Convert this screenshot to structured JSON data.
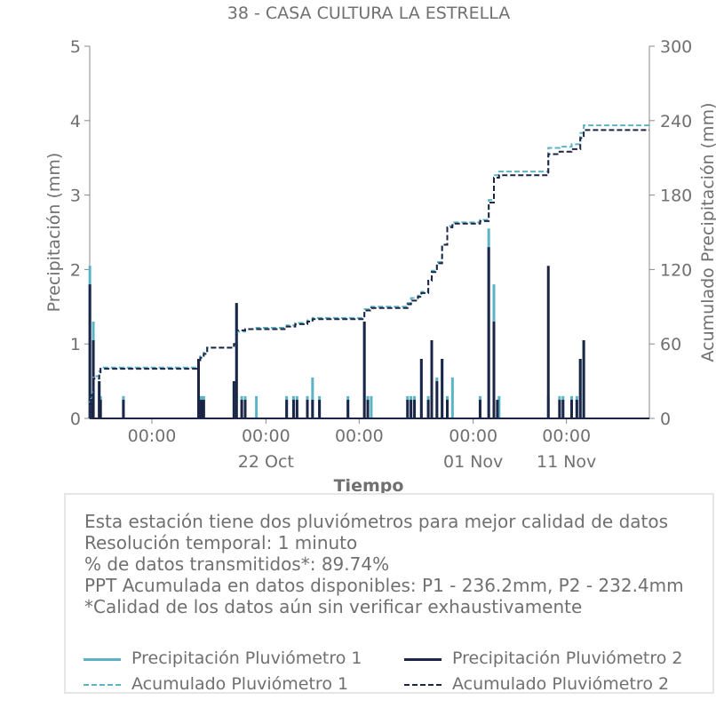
{
  "chart_data": {
    "type": "line",
    "title": "38 - CASA CULTURA LA ESTRELLA",
    "xlabel": "Tiempo",
    "ylabel": "Precipitación (mm)",
    "ylabel_right": "Acumulado Precipitación (mm)",
    "ylim": [
      0,
      5
    ],
    "ylim_right": [
      0,
      300
    ],
    "yticks": [
      "0",
      "1",
      "2",
      "3",
      "4",
      "5"
    ],
    "yticks_right": [
      "0",
      "60",
      "120",
      "180",
      "240",
      "300"
    ],
    "xlim": [
      "2023-10-15T00:00",
      "2023-11-11T00:00"
    ],
    "xticks": [
      {
        "x": "2023-10-18T00:00",
        "label": "00:00",
        "sublabel": ""
      },
      {
        "x": "2023-10-23T12:00",
        "label": "00:00",
        "sublabel": "22 Oct"
      },
      {
        "x": "2023-10-28T00:00",
        "label": "00:00",
        "sublabel": ""
      },
      {
        "x": "2023-11-02T12:00",
        "label": "00:00",
        "sublabel": "01 Nov"
      },
      {
        "x": "2023-11-07T00:00",
        "label": "00:00",
        "sublabel": "11 Nov"
      }
    ],
    "grid": false,
    "colors": {
      "p1": "#5ab4c4",
      "p2": "#1d2547"
    },
    "series": [
      {
        "name": "Precipitación Pluviómetro 1",
        "axis": "left",
        "style": "bar-spike",
        "color": "#5ab4c4",
        "points": [
          [
            "2023-10-15T00:10",
            2.05
          ],
          [
            "2023-10-15T00:40",
            0.3
          ],
          [
            "2023-10-15T01:20",
            0.3
          ],
          [
            "2023-10-15T02:20",
            0.3
          ],
          [
            "2023-10-15T03:00",
            0.3
          ],
          [
            "2023-10-15T04:10",
            1.3
          ],
          [
            "2023-10-15T11:00",
            0.5
          ],
          [
            "2023-10-15T12:30",
            0.3
          ],
          [
            "2023-10-16T15:00",
            0.3
          ],
          [
            "2023-10-20T06:00",
            0.8
          ],
          [
            "2023-10-20T08:00",
            0.3
          ],
          [
            "2023-10-20T10:00",
            0.3
          ],
          [
            "2023-10-20T12:00",
            0.3
          ],
          [
            "2023-10-21T23:00",
            0.5
          ],
          [
            "2023-10-22T02:00",
            1.55
          ],
          [
            "2023-10-22T08:00",
            0.3
          ],
          [
            "2023-10-22T12:00",
            0.3
          ],
          [
            "2023-10-23T01:00",
            0.3
          ],
          [
            "2023-10-24T12:00",
            0.3
          ],
          [
            "2023-10-24T20:00",
            0.3
          ],
          [
            "2023-10-25T00:00",
            0.3
          ],
          [
            "2023-10-25T12:00",
            0.3
          ],
          [
            "2023-10-25T18:00",
            0.55
          ],
          [
            "2023-10-26T02:00",
            0.3
          ],
          [
            "2023-10-27T11:00",
            0.3
          ],
          [
            "2023-10-28T06:00",
            1.3
          ],
          [
            "2023-10-28T10:00",
            0.3
          ],
          [
            "2023-10-28T14:00",
            0.3
          ],
          [
            "2023-10-30T08:00",
            0.3
          ],
          [
            "2023-10-30T12:00",
            0.3
          ],
          [
            "2023-10-30T16:00",
            0.3
          ],
          [
            "2023-10-31T00:00",
            0.8
          ],
          [
            "2023-10-31T08:00",
            0.3
          ],
          [
            "2023-10-31T12:00",
            1.05
          ],
          [
            "2023-10-31T18:00",
            0.55
          ],
          [
            "2023-11-01T00:00",
            0.8
          ],
          [
            "2023-11-01T06:00",
            0.3
          ],
          [
            "2023-11-01T12:00",
            0.55
          ],
          [
            "2023-11-02T20:00",
            0.3
          ],
          [
            "2023-11-03T06:00",
            2.55
          ],
          [
            "2023-11-03T12:00",
            1.8
          ],
          [
            "2023-11-03T18:00",
            0.3
          ],
          [
            "2023-11-06T03:00",
            0.3
          ],
          [
            "2023-11-06T16:00",
            0.3
          ],
          [
            "2023-11-06T20:00",
            0.3
          ],
          [
            "2023-11-07T06:00",
            0.3
          ],
          [
            "2023-11-07T12:00",
            0.3
          ],
          [
            "2023-11-07T16:00",
            0.8
          ],
          [
            "2023-11-07T20:00",
            1.05
          ]
        ]
      },
      {
        "name": "Precipitación Pluviómetro 2",
        "axis": "left",
        "style": "bar-spike",
        "color": "#1d2547",
        "points": [
          [
            "2023-10-15T00:10",
            1.8
          ],
          [
            "2023-10-15T00:40",
            0.25
          ],
          [
            "2023-10-15T01:20",
            0.25
          ],
          [
            "2023-10-15T02:20",
            0.25
          ],
          [
            "2023-10-15T03:00",
            0.25
          ],
          [
            "2023-10-15T04:10",
            1.05
          ],
          [
            "2023-10-15T11:00",
            0.5
          ],
          [
            "2023-10-15T12:30",
            0.25
          ],
          [
            "2023-10-16T15:00",
            0.25
          ],
          [
            "2023-10-20T06:00",
            0.8
          ],
          [
            "2023-10-20T08:00",
            0.25
          ],
          [
            "2023-10-20T10:00",
            0.25
          ],
          [
            "2023-10-20T12:00",
            0.25
          ],
          [
            "2023-10-21T23:00",
            0.5
          ],
          [
            "2023-10-22T02:00",
            1.55
          ],
          [
            "2023-10-22T08:00",
            0.25
          ],
          [
            "2023-10-22T12:00",
            0.25
          ],
          [
            "2023-10-24T12:00",
            0.25
          ],
          [
            "2023-10-24T20:00",
            0.25
          ],
          [
            "2023-10-25T00:00",
            0.25
          ],
          [
            "2023-10-25T12:00",
            0.25
          ],
          [
            "2023-10-25T18:00",
            0.25
          ],
          [
            "2023-10-26T02:00",
            0.25
          ],
          [
            "2023-10-27T11:00",
            0.25
          ],
          [
            "2023-10-28T06:00",
            1.3
          ],
          [
            "2023-10-28T10:00",
            0.25
          ],
          [
            "2023-10-30T08:00",
            0.25
          ],
          [
            "2023-10-30T12:00",
            0.25
          ],
          [
            "2023-10-30T16:00",
            0.25
          ],
          [
            "2023-10-31T00:00",
            0.8
          ],
          [
            "2023-10-31T08:00",
            0.25
          ],
          [
            "2023-10-31T12:00",
            1.05
          ],
          [
            "2023-10-31T18:00",
            0.5
          ],
          [
            "2023-11-01T00:00",
            0.8
          ],
          [
            "2023-11-01T06:00",
            0.25
          ],
          [
            "2023-11-02T20:00",
            0.25
          ],
          [
            "2023-11-03T06:00",
            2.3
          ],
          [
            "2023-11-03T12:00",
            1.3
          ],
          [
            "2023-11-03T16:00",
            0.25
          ],
          [
            "2023-11-06T03:00",
            2.05
          ],
          [
            "2023-11-06T16:00",
            0.25
          ],
          [
            "2023-11-06T20:00",
            0.25
          ],
          [
            "2023-11-07T06:00",
            0.25
          ],
          [
            "2023-11-07T12:00",
            0.25
          ],
          [
            "2023-11-07T16:00",
            0.8
          ],
          [
            "2023-11-07T20:00",
            1.05
          ]
        ]
      },
      {
        "name": "Acumulado Pluviómetro 1",
        "axis": "right",
        "style": "step-dashed",
        "color": "#5ab4c4",
        "points": [
          [
            "2023-10-15T00:00",
            0
          ],
          [
            "2023-10-15T00:10",
            13
          ],
          [
            "2023-10-15T01:20",
            17
          ],
          [
            "2023-10-15T02:30",
            21
          ],
          [
            "2023-10-15T04:10",
            34
          ],
          [
            "2023-10-15T11:00",
            38
          ],
          [
            "2023-10-15T12:30",
            41
          ],
          [
            "2023-10-20T06:00",
            46
          ],
          [
            "2023-10-20T08:00",
            50
          ],
          [
            "2023-10-20T12:00",
            53
          ],
          [
            "2023-10-20T16:00",
            57
          ],
          [
            "2023-10-21T23:00",
            60
          ],
          [
            "2023-10-22T02:00",
            70
          ],
          [
            "2023-10-22T12:00",
            72
          ],
          [
            "2023-10-23T01:00",
            73
          ],
          [
            "2023-10-24T12:00",
            75
          ],
          [
            "2023-10-24T22:00",
            77
          ],
          [
            "2023-10-25T12:00",
            79
          ],
          [
            "2023-10-25T18:00",
            81
          ],
          [
            "2023-10-28T06:00",
            88
          ],
          [
            "2023-10-28T14:00",
            90
          ],
          [
            "2023-10-30T08:00",
            93
          ],
          [
            "2023-10-30T12:00",
            97
          ],
          [
            "2023-10-30T20:00",
            99
          ],
          [
            "2023-10-31T00:00",
            102
          ],
          [
            "2023-10-31T08:00",
            112
          ],
          [
            "2023-10-31T12:00",
            119
          ],
          [
            "2023-10-31T18:00",
            126
          ],
          [
            "2023-11-01T00:00",
            140
          ],
          [
            "2023-11-01T06:00",
            155
          ],
          [
            "2023-11-01T12:00",
            158
          ],
          [
            "2023-11-02T20:00",
            160
          ],
          [
            "2023-11-03T06:00",
            176
          ],
          [
            "2023-11-03T12:00",
            196
          ],
          [
            "2023-11-03T18:00",
            199
          ],
          [
            "2023-11-06T03:00",
            218
          ],
          [
            "2023-11-06T16:00",
            219
          ],
          [
            "2023-11-07T06:00",
            221
          ],
          [
            "2023-11-07T16:00",
            230
          ],
          [
            "2023-11-07T20:00",
            236.2
          ],
          [
            "2023-11-11T00:00",
            236.2
          ]
        ]
      },
      {
        "name": "Acumulado Pluviómetro 2",
        "axis": "right",
        "style": "step-dashed",
        "color": "#1d2547",
        "points": [
          [
            "2023-10-15T00:00",
            0
          ],
          [
            "2023-10-15T00:10",
            11
          ],
          [
            "2023-10-15T01:20",
            15
          ],
          [
            "2023-10-15T02:30",
            19
          ],
          [
            "2023-10-15T04:10",
            32
          ],
          [
            "2023-10-15T11:00",
            36
          ],
          [
            "2023-10-15T12:30",
            40
          ],
          [
            "2023-10-20T06:00",
            45
          ],
          [
            "2023-10-20T08:00",
            49
          ],
          [
            "2023-10-20T12:00",
            52
          ],
          [
            "2023-10-20T16:00",
            57
          ],
          [
            "2023-10-21T23:00",
            60
          ],
          [
            "2023-10-22T02:00",
            71
          ],
          [
            "2023-10-22T12:00",
            72
          ],
          [
            "2023-10-24T12:00",
            74
          ],
          [
            "2023-10-24T22:00",
            76
          ],
          [
            "2023-10-25T12:00",
            78
          ],
          [
            "2023-10-25T18:00",
            80
          ],
          [
            "2023-10-28T06:00",
            87
          ],
          [
            "2023-10-28T14:00",
            89
          ],
          [
            "2023-10-30T08:00",
            92
          ],
          [
            "2023-10-30T12:00",
            95
          ],
          [
            "2023-10-30T20:00",
            98
          ],
          [
            "2023-10-31T00:00",
            101
          ],
          [
            "2023-10-31T08:00",
            111
          ],
          [
            "2023-10-31T12:00",
            118
          ],
          [
            "2023-10-31T18:00",
            125
          ],
          [
            "2023-11-01T00:00",
            140
          ],
          [
            "2023-11-01T06:00",
            154
          ],
          [
            "2023-11-01T12:00",
            157
          ],
          [
            "2023-11-02T20:00",
            159
          ],
          [
            "2023-11-03T06:00",
            174
          ],
          [
            "2023-11-03T12:00",
            194
          ],
          [
            "2023-11-03T18:00",
            196
          ],
          [
            "2023-11-06T03:00",
            213
          ],
          [
            "2023-11-06T16:00",
            215
          ],
          [
            "2023-11-07T06:00",
            217
          ],
          [
            "2023-11-07T16:00",
            226
          ],
          [
            "2023-11-07T20:00",
            232.4
          ],
          [
            "2023-11-11T00:00",
            232.4
          ]
        ]
      }
    ]
  },
  "info": {
    "lines": [
      "Esta estación tiene dos pluviómetros para mejor calidad de datos",
      "Resolución temporal: 1 minuto",
      "% de datos transmitidos*: 89.74%",
      "PPT Acumulada en datos disponibles: P1 - 236.2mm, P2 - 232.4mm",
      "*Calidad de los datos aún sin verificar exhaustivamente"
    ]
  },
  "legend": {
    "items": [
      {
        "label": "Precipitación Pluviómetro 1",
        "color": "#5ab4c4",
        "style": "solid"
      },
      {
        "label": "Precipitación Pluviómetro 2",
        "color": "#1d2547",
        "style": "solid"
      },
      {
        "label": "Acumulado Pluviómetro 1",
        "color": "#5ab4c4",
        "style": "dashed"
      },
      {
        "label": "Acumulado Pluviómetro 2",
        "color": "#1d2547",
        "style": "dashed"
      }
    ]
  }
}
